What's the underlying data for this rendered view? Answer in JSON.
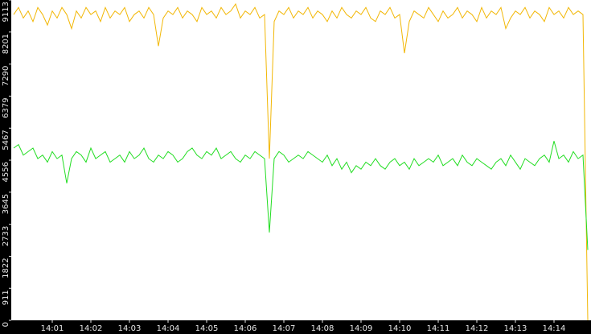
{
  "chart_data": {
    "type": "line",
    "categories": [
      null,
      null,
      null,
      null,
      null,
      null,
      null,
      null,
      "14:01",
      null,
      null,
      null,
      null,
      null,
      null,
      null,
      "14:02",
      null,
      null,
      null,
      null,
      null,
      null,
      null,
      "14:03",
      null,
      null,
      null,
      null,
      null,
      null,
      null,
      "14:04",
      null,
      null,
      null,
      null,
      null,
      null,
      null,
      "14:05",
      null,
      null,
      null,
      null,
      null,
      null,
      null,
      "14:06",
      null,
      null,
      null,
      null,
      null,
      null,
      null,
      "14:07",
      null,
      null,
      null,
      null,
      null,
      null,
      null,
      "14:08",
      null,
      null,
      null,
      null,
      null,
      null,
      null,
      "14:09",
      null,
      null,
      null,
      null,
      null,
      null,
      null,
      "14:10",
      null,
      null,
      null,
      null,
      null,
      null,
      null,
      "14:11",
      null,
      null,
      null,
      null,
      null,
      null,
      null,
      "14:12",
      null,
      null,
      null,
      null,
      null,
      null,
      null,
      "14:13",
      null,
      null,
      null,
      null,
      null,
      null,
      null,
      "14:14",
      null,
      null,
      null,
      null,
      null,
      null,
      null
    ],
    "series": [
      {
        "color": "#f2b705",
        "values": [
          8700,
          8900,
          8600,
          8800,
          8500,
          8900,
          8700,
          8400,
          8800,
          8600,
          8900,
          8700,
          8300,
          8800,
          8600,
          8900,
          8700,
          8800,
          8500,
          8900,
          8600,
          8800,
          8700,
          8900,
          8500,
          8700,
          8800,
          8600,
          8900,
          8700,
          7800,
          8600,
          8800,
          8700,
          8900,
          8600,
          8800,
          8700,
          8500,
          8900,
          8700,
          8800,
          8600,
          8900,
          8700,
          8800,
          9000,
          8600,
          8800,
          8700,
          8900,
          8600,
          8700,
          4600,
          8500,
          8800,
          8700,
          8900,
          8600,
          8800,
          8700,
          8900,
          8600,
          8800,
          8700,
          8500,
          8800,
          8600,
          8900,
          8700,
          8600,
          8800,
          8700,
          8900,
          8600,
          8500,
          8800,
          8700,
          8900,
          8600,
          8700,
          7600,
          8500,
          8800,
          8700,
          8600,
          8900,
          8700,
          8500,
          8800,
          8600,
          8700,
          8900,
          8600,
          8800,
          8700,
          8500,
          8900,
          8600,
          8800,
          8700,
          8900,
          8300,
          8600,
          8800,
          8700,
          8900,
          8600,
          8800,
          8700,
          8500,
          8900,
          8700,
          8800,
          8600,
          8900,
          8700,
          8800,
          8700,
          0
        ]
      },
      {
        "color": "#22dd22",
        "values": [
          4900,
          5000,
          4700,
          4800,
          4900,
          4600,
          4700,
          4500,
          4800,
          4600,
          4700,
          3900,
          4600,
          4800,
          4700,
          4500,
          4900,
          4600,
          4700,
          4800,
          4500,
          4600,
          4700,
          4500,
          4800,
          4600,
          4700,
          4900,
          4600,
          4500,
          4700,
          4600,
          4800,
          4700,
          4500,
          4600,
          4800,
          4900,
          4700,
          4600,
          4800,
          4700,
          4900,
          4600,
          4700,
          4800,
          4600,
          4500,
          4700,
          4600,
          4800,
          4700,
          4600,
          2500,
          4600,
          4800,
          4700,
          4500,
          4600,
          4700,
          4600,
          4800,
          4700,
          4600,
          4500,
          4700,
          4400,
          4600,
          4300,
          4500,
          4200,
          4400,
          4300,
          4500,
          4400,
          4600,
          4400,
          4300,
          4500,
          4600,
          4400,
          4500,
          4300,
          4600,
          4400,
          4500,
          4600,
          4500,
          4700,
          4400,
          4500,
          4600,
          4400,
          4700,
          4500,
          4400,
          4600,
          4500,
          4400,
          4300,
          4500,
          4600,
          4400,
          4700,
          4500,
          4300,
          4600,
          4500,
          4400,
          4600,
          4700,
          4500,
          5100,
          4600,
          4700,
          4500,
          4800,
          4600,
          4700,
          2000
        ]
      }
    ],
    "ylim": [
      0,
      9113
    ],
    "yticks": [
      0,
      911,
      1822,
      2733,
      3645,
      4556,
      5467,
      6379,
      7290,
      8201,
      9113
    ]
  }
}
